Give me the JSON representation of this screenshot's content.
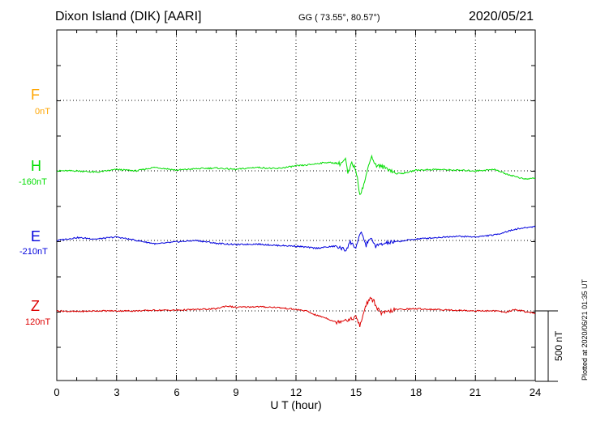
{
  "header": {
    "station": "Dixon Island (DIK)  [AARI]",
    "coords": "GG ( 73.55°,  80.57°)",
    "date": "2020/05/21"
  },
  "scale_label": "500 nT",
  "plotted_note": "Plotted at 2020/06/21 01:35 UT",
  "chart_data": {
    "type": "line",
    "title": "Dixon Island (DIK)  [AARI]",
    "xlabel": "U T (hour)",
    "xlim": [
      0,
      24
    ],
    "x_ticks": [
      "0",
      "3",
      "6",
      "9",
      "12",
      "15",
      "18",
      "21",
      "24"
    ],
    "grid": true,
    "scale_bar_nT": 500,
    "series": [
      {
        "name": "F",
        "baseline_label": "0nT",
        "color": "#ffa500",
        "x": [],
        "y": []
      },
      {
        "name": "H",
        "baseline_label": "-160nT",
        "color": "#00dd00",
        "x": [
          0,
          1,
          2,
          3,
          4,
          4.9,
          5.5,
          6,
          7,
          8,
          9,
          10,
          11,
          12,
          12.5,
          13,
          13.5,
          14,
          14.2,
          14.5,
          14.6,
          14.8,
          15.0,
          15.2,
          15.3,
          15.5,
          15.7,
          15.8,
          16.0,
          16.3,
          16.7,
          17.0,
          17.5,
          18,
          19,
          20,
          21,
          22,
          22.5,
          23,
          23.5,
          24
        ],
        "y": [
          0,
          0,
          -10,
          10,
          0,
          25,
          15,
          5,
          15,
          20,
          10,
          25,
          15,
          35,
          40,
          50,
          60,
          55,
          50,
          80,
          -25,
          55,
          10,
          -160,
          -140,
          -50,
          80,
          100,
          40,
          30,
          10,
          -20,
          -15,
          5,
          10,
          5,
          0,
          10,
          -20,
          -40,
          -60,
          -50
        ]
      },
      {
        "name": "E",
        "baseline_label": "-210nT",
        "color": "#0000dd",
        "x": [
          0,
          1,
          2,
          3,
          4,
          5,
          6,
          7,
          8,
          9,
          10,
          11,
          12,
          13,
          14,
          14.5,
          14.7,
          15.0,
          15.2,
          15.3,
          15.5,
          15.7,
          16.0,
          16.5,
          17,
          18,
          19,
          20,
          21,
          22,
          23,
          24
        ],
        "y": [
          0,
          20,
          10,
          25,
          0,
          -25,
          -10,
          0,
          -20,
          -30,
          -25,
          -35,
          -40,
          -55,
          -40,
          -70,
          -10,
          -50,
          30,
          60,
          -40,
          20,
          -40,
          -20,
          -10,
          10,
          20,
          30,
          25,
          40,
          80,
          100
        ]
      },
      {
        "name": "Z",
        "baseline_label": "120nT",
        "color": "#dd0000",
        "x": [
          0,
          1,
          2,
          3,
          4,
          5,
          6,
          7,
          8,
          8.5,
          9,
          10,
          11,
          12,
          12.5,
          13,
          13.5,
          14,
          14.5,
          14.7,
          15.0,
          15.2,
          15.3,
          15.5,
          15.7,
          15.9,
          16.1,
          16.3,
          17,
          18,
          19,
          20,
          21,
          22,
          22.5,
          23,
          23.5,
          24
        ],
        "y": [
          0,
          -5,
          0,
          0,
          0,
          5,
          5,
          10,
          15,
          35,
          25,
          30,
          25,
          10,
          0,
          -30,
          -50,
          -80,
          -60,
          -65,
          -40,
          -110,
          -60,
          40,
          85,
          70,
          15,
          -20,
          10,
          15,
          10,
          5,
          0,
          0,
          -10,
          10,
          -5,
          -20
        ]
      }
    ]
  }
}
